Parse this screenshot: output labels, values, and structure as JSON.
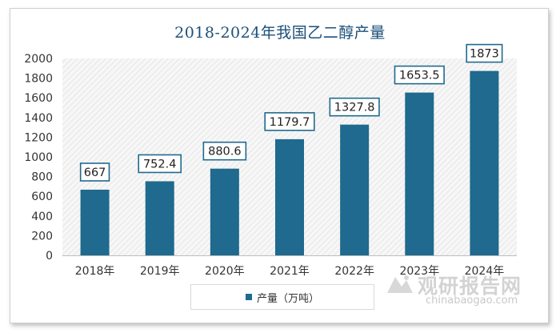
{
  "chart_data": {
    "type": "bar",
    "title": "2018-2024年我国乙二醇产量",
    "categories": [
      "2018年",
      "2019年",
      "2020年",
      "2021年",
      "2022年",
      "2023年",
      "2024年"
    ],
    "values": [
      667,
      752.4,
      880.6,
      1179.7,
      1327.8,
      1653.5,
      1873
    ],
    "value_labels": [
      "667",
      "752.4",
      "880.6",
      "1179.7",
      "1327.8",
      "1653.5",
      "1873"
    ],
    "series": [
      {
        "name": "产量（万吨）",
        "values": [
          667,
          752.4,
          880.6,
          1179.7,
          1327.8,
          1653.5,
          1873
        ]
      }
    ],
    "ylim": [
      0,
      2000
    ],
    "yticks": [
      0,
      200,
      400,
      600,
      800,
      1000,
      1200,
      1400,
      1600,
      1800,
      2000
    ],
    "xlabel": "",
    "ylabel": "",
    "legend_position": "bottom"
  },
  "colors": {
    "bar": "#1f6a8e",
    "title": "#1c4f78",
    "label_border": "#1f6a8e"
  },
  "watermark": {
    "text": "观研报告网",
    "url": "chinabaogao.com",
    "icon": "logo-icon"
  }
}
